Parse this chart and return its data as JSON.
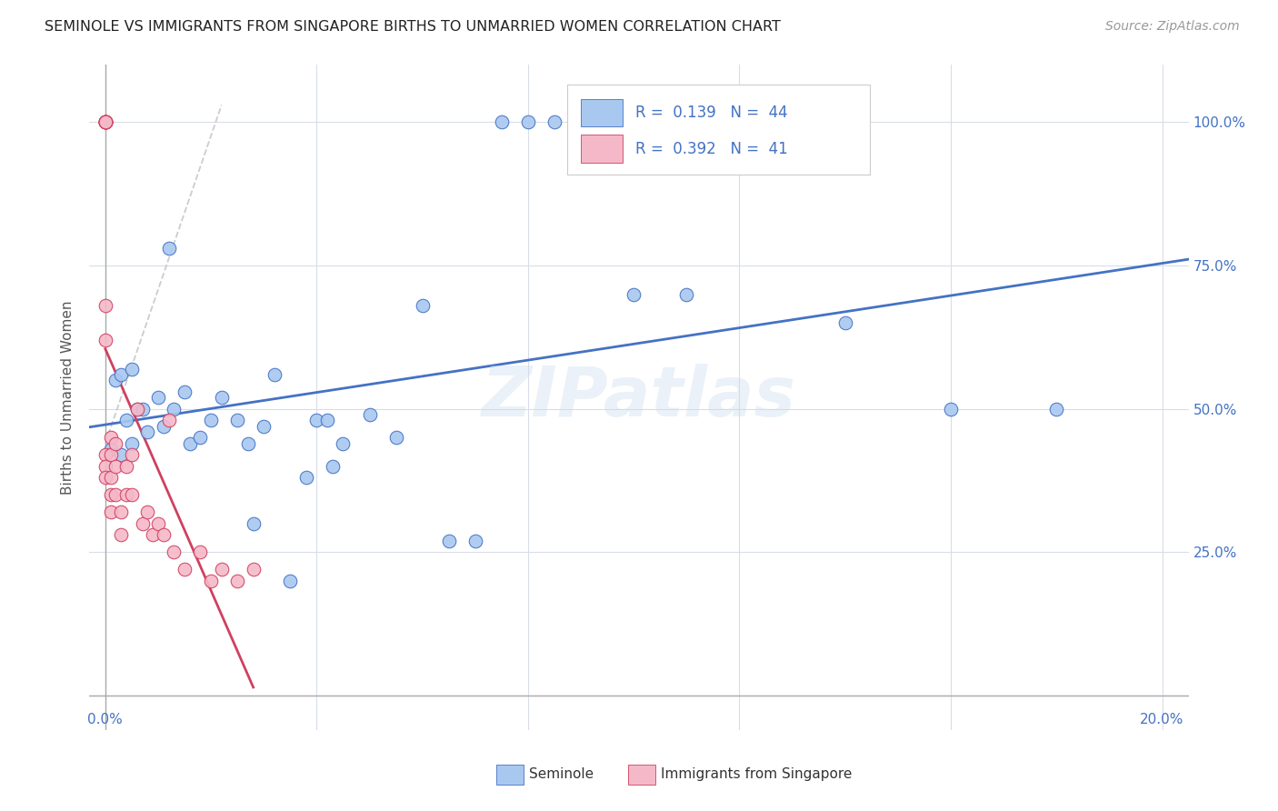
{
  "title": "SEMINOLE VS IMMIGRANTS FROM SINGAPORE BIRTHS TO UNMARRIED WOMEN CORRELATION CHART",
  "source": "Source: ZipAtlas.com",
  "ylabel": "Births to Unmarried Women",
  "legend_label1": "Seminole",
  "legend_label2": "Immigrants from Singapore",
  "R1": 0.139,
  "N1": 44,
  "R2": 0.392,
  "N2": 41,
  "color_blue": "#a8c8f0",
  "color_pink": "#f5b8c8",
  "trendline_blue": "#4472c4",
  "trendline_pink": "#d04060",
  "trendline_gray": "#c0c0c0",
  "watermark": "ZIPatlas",
  "seminole_x": [
    0.001,
    0.002,
    0.003,
    0.003,
    0.004,
    0.005,
    0.005,
    0.006,
    0.007,
    0.008,
    0.01,
    0.011,
    0.012,
    0.013,
    0.015,
    0.016,
    0.018,
    0.02,
    0.022,
    0.025,
    0.027,
    0.028,
    0.03,
    0.032,
    0.035,
    0.038,
    0.04,
    0.042,
    0.043,
    0.045,
    0.05,
    0.055,
    0.06,
    0.065,
    0.07,
    0.075,
    0.08,
    0.085,
    0.09,
    0.1,
    0.11,
    0.14,
    0.16,
    0.18
  ],
  "seminole_y": [
    0.43,
    0.55,
    0.56,
    0.42,
    0.48,
    0.44,
    0.57,
    0.5,
    0.5,
    0.46,
    0.52,
    0.47,
    0.78,
    0.5,
    0.53,
    0.44,
    0.45,
    0.48,
    0.52,
    0.48,
    0.44,
    0.3,
    0.47,
    0.56,
    0.2,
    0.38,
    0.48,
    0.48,
    0.4,
    0.44,
    0.49,
    0.45,
    0.68,
    0.27,
    0.27,
    1.0,
    1.0,
    1.0,
    1.0,
    0.7,
    0.7,
    0.65,
    0.5,
    0.5
  ],
  "singapore_x": [
    0.0,
    0.0,
    0.0,
    0.0,
    0.0,
    0.0,
    0.0,
    0.0,
    0.0,
    0.0,
    0.0,
    0.0,
    0.0,
    0.001,
    0.001,
    0.001,
    0.001,
    0.001,
    0.002,
    0.002,
    0.002,
    0.003,
    0.003,
    0.004,
    0.004,
    0.005,
    0.005,
    0.006,
    0.007,
    0.008,
    0.009,
    0.01,
    0.011,
    0.012,
    0.013,
    0.015,
    0.018,
    0.02,
    0.022,
    0.025,
    0.028
  ],
  "singapore_y": [
    1.0,
    1.0,
    1.0,
    1.0,
    1.0,
    1.0,
    1.0,
    1.0,
    0.68,
    0.62,
    0.42,
    0.4,
    0.38,
    0.45,
    0.42,
    0.38,
    0.35,
    0.32,
    0.44,
    0.4,
    0.35,
    0.32,
    0.28,
    0.4,
    0.35,
    0.42,
    0.35,
    0.5,
    0.3,
    0.32,
    0.28,
    0.3,
    0.28,
    0.48,
    0.25,
    0.22,
    0.25,
    0.2,
    0.22,
    0.2,
    0.22
  ],
  "xmin": -0.003,
  "xmax": 0.205,
  "ymin": -0.06,
  "ymax": 1.1,
  "x_ticks": [
    0.0,
    0.04,
    0.08,
    0.12,
    0.16,
    0.2
  ],
  "y_ticks": [
    0.0,
    0.25,
    0.5,
    0.75,
    1.0
  ],
  "y_tick_labels": [
    "",
    "25.0%",
    "50.0%",
    "75.0%",
    "100.0%"
  ]
}
